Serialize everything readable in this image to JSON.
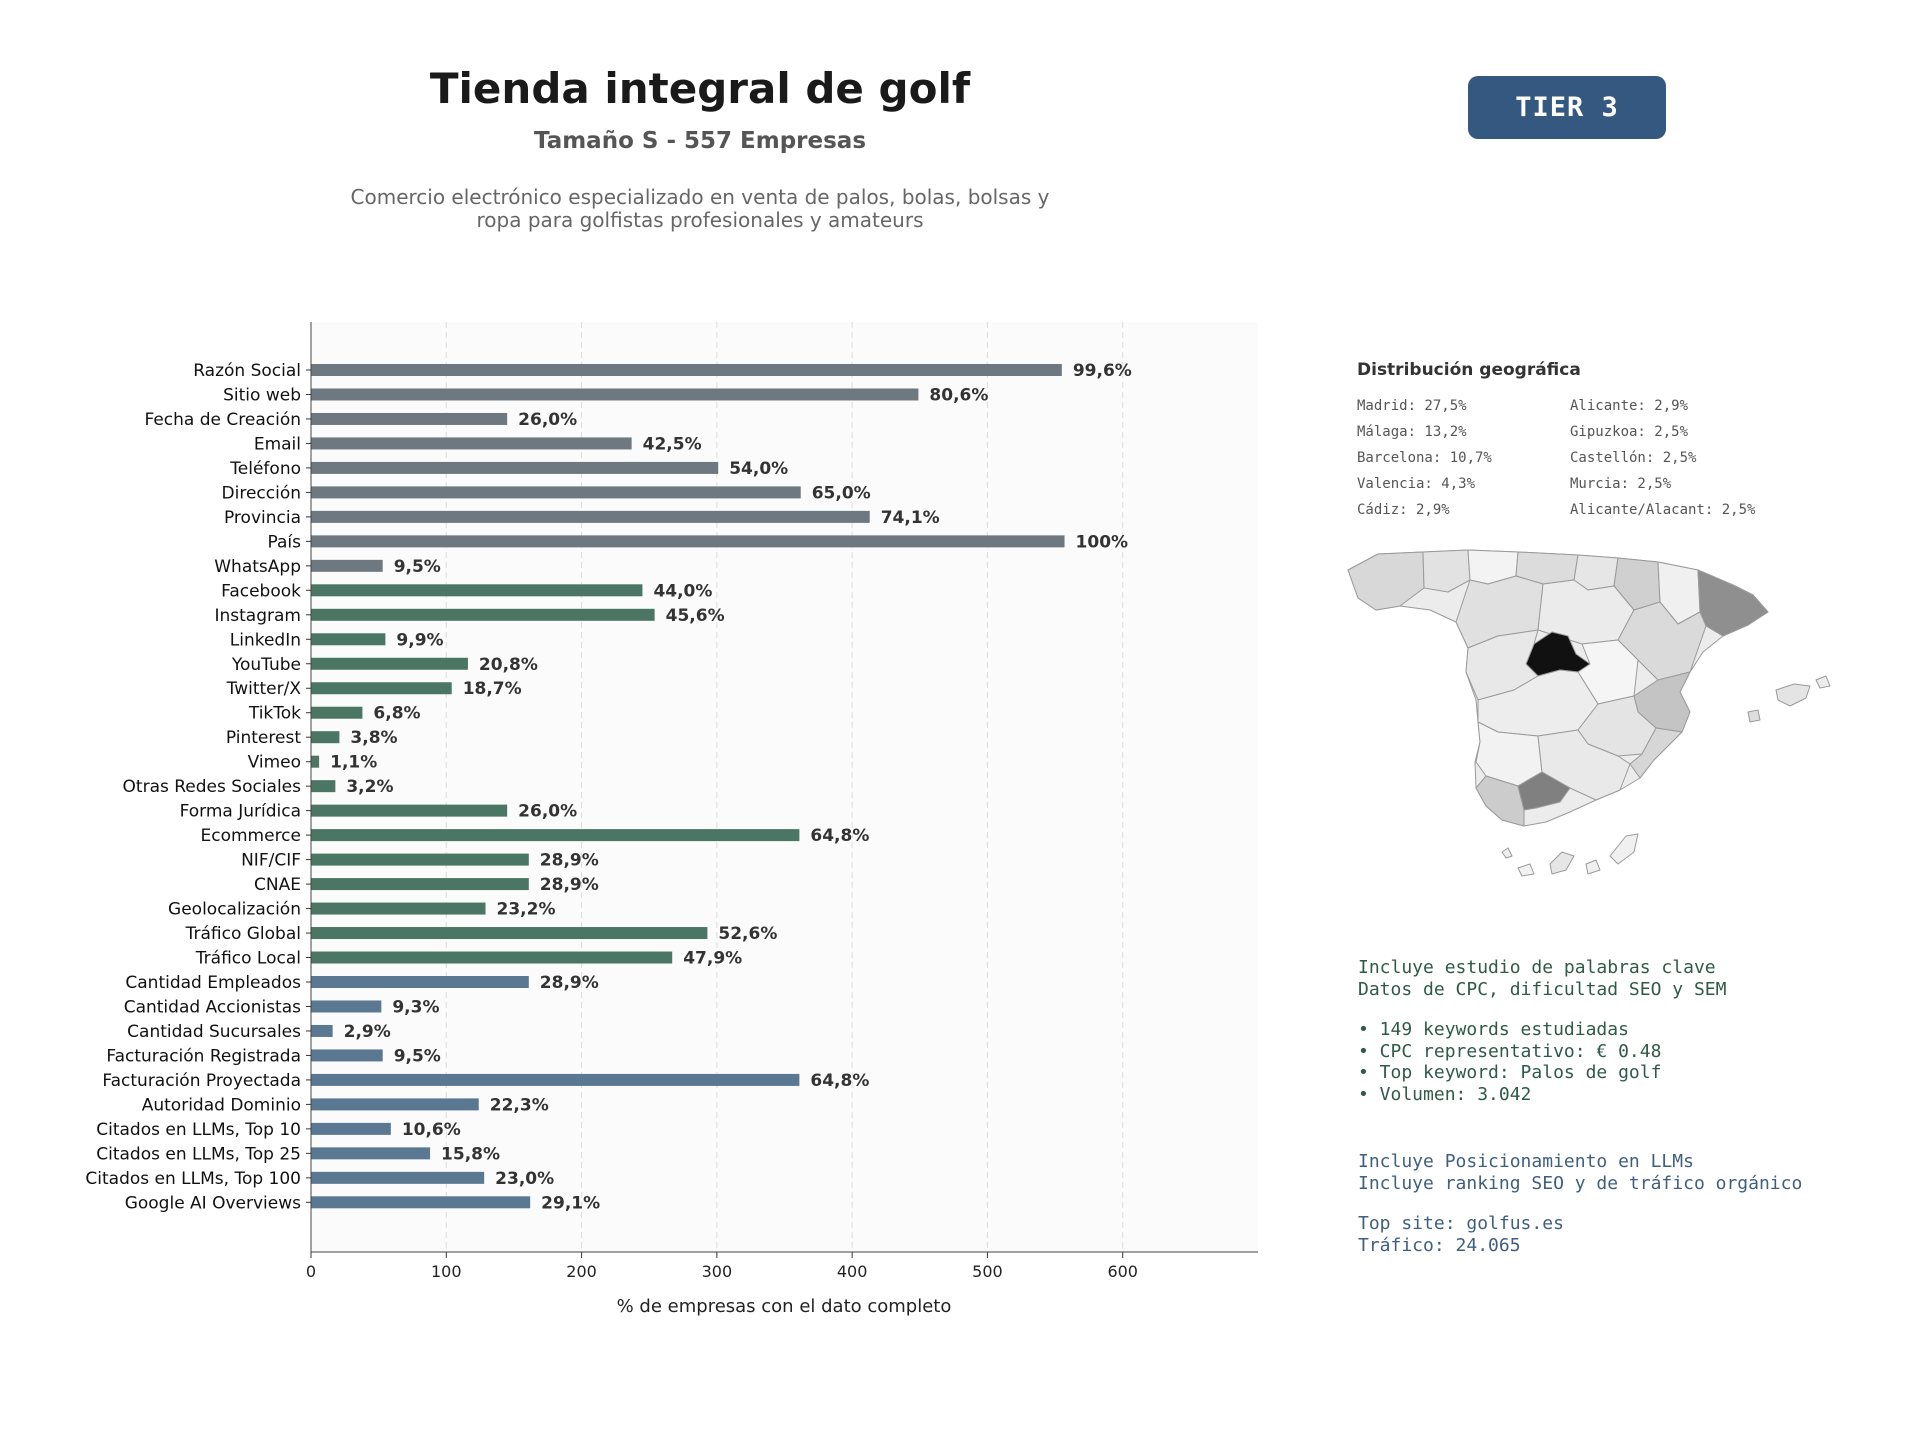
{
  "header": {
    "title": "Tienda integral de golf",
    "subtitle": "Tamaño S - 557 Empresas",
    "description_line1": "Comercio electrónico especializado en venta de palos, bolas, bolsas y",
    "description_line2": "ropa para golfistas profesionales y amateurs"
  },
  "badge": {
    "label": "TIER 3",
    "color": "#34587f"
  },
  "chart_data": {
    "type": "bar",
    "orientation": "horizontal",
    "xlabel": "% de empresas con el dato completo",
    "ylabel": "",
    "xlim": [
      0,
      700
    ],
    "xticks": [
      0,
      100,
      200,
      300,
      400,
      500,
      600
    ],
    "grid": "vertical dashed",
    "colors": {
      "general": "#6e7880",
      "digital": "#4a7663",
      "financial": "#5a7891"
    },
    "categories": [
      "Razón Social",
      "Sitio web",
      "Fecha de Creación",
      "Email",
      "Teléfono",
      "Dirección",
      "Provincia",
      "País",
      "WhatsApp",
      "Facebook",
      "Instagram",
      "LinkedIn",
      "YouTube",
      "Twitter/X",
      "TikTok",
      "Pinterest",
      "Vimeo",
      "Otras Redes Sociales",
      "Forma Jurídica",
      "Ecommerce",
      "NIF/CIF",
      "CNAE",
      "Geolocalización",
      "Tráfico Global",
      "Tráfico Local",
      "Cantidad Empleados",
      "Cantidad Accionistas",
      "Cantidad Sucursales",
      "Facturación Registrada",
      "Facturación Proyectada",
      "Autoridad Dominio",
      "Citados en LLMs, Top 10",
      "Citados en LLMs, Top 25",
      "Citados en LLMs, Top 100",
      "Google AI Overviews"
    ],
    "values": [
      555,
      449,
      145,
      237,
      301,
      362,
      413,
      557,
      53,
      245,
      254,
      55,
      116,
      104,
      38,
      21,
      6,
      18,
      145,
      361,
      161,
      161,
      129,
      293,
      267,
      161,
      52,
      16,
      53,
      361,
      124,
      59,
      88,
      128,
      162
    ],
    "labels": [
      "99,6%",
      "80,6%",
      "26,0%",
      "42,5%",
      "54,0%",
      "65,0%",
      "74,1%",
      "100%",
      "9,5%",
      "44,0%",
      "45,6%",
      "9,9%",
      "20,8%",
      "18,7%",
      "6,8%",
      "3,8%",
      "1,1%",
      "3,2%",
      "26,0%",
      "64,8%",
      "28,9%",
      "28,9%",
      "23,2%",
      "52,6%",
      "47,9%",
      "28,9%",
      "9,3%",
      "2,9%",
      "9,5%",
      "64,8%",
      "22,3%",
      "10,6%",
      "15,8%",
      "23,0%",
      "29,1%"
    ],
    "groups": [
      "general",
      "general",
      "general",
      "general",
      "general",
      "general",
      "general",
      "general",
      "general",
      "digital",
      "digital",
      "digital",
      "digital",
      "digital",
      "digital",
      "digital",
      "digital",
      "digital",
      "digital",
      "digital",
      "digital",
      "digital",
      "digital",
      "digital",
      "digital",
      "financial",
      "financial",
      "financial",
      "financial",
      "financial",
      "financial",
      "financial",
      "financial",
      "financial",
      "financial"
    ]
  },
  "geo": {
    "title": "Distribución geográfica",
    "items": [
      "Madrid: 27,5%",
      "Alicante: 2,9%",
      "Málaga: 13,2%",
      "Gipuzkoa: 2,5%",
      "Barcelona: 10,7%",
      "Castellón: 2,5%",
      "Valencia: 4,3%",
      "Murcia: 2,5%",
      "Cádiz: 2,9%",
      "Alicante/Alacant: 2,5%"
    ]
  },
  "keywords": {
    "line1": "Incluye estudio de palabras clave",
    "line2": "Datos de CPC, dificultad SEO y SEM",
    "bullet1": "• 149 keywords estudiadas",
    "bullet2": "• CPC representativo: € 0.48",
    "bullet3": "• Top keyword: Palos de golf",
    "bullet4": "• Volumen: 3.042"
  },
  "llm": {
    "line1": "Incluye Posicionamiento en LLMs",
    "line2": "Incluye ranking SEO y de tráfico orgánico",
    "top_site": "Top site: golfus.es",
    "traffic": "Tráfico: 24.065"
  }
}
